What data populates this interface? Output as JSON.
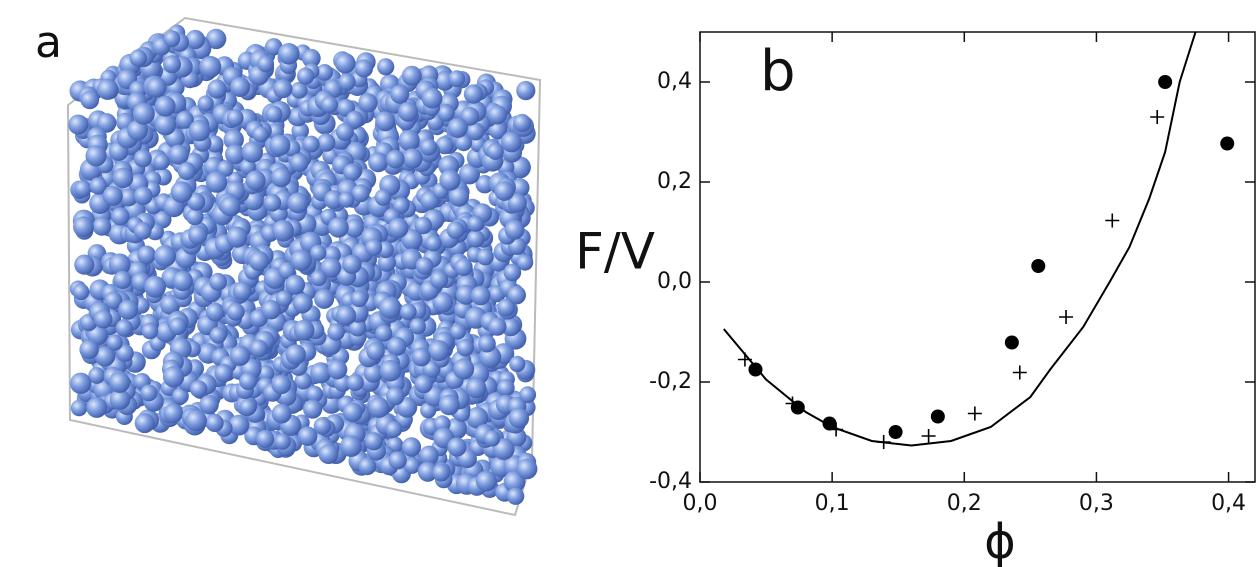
{
  "panel_a": {
    "label": "a"
  },
  "chart_data": {
    "type": "scatter",
    "panel_label": "b",
    "y_label": "F/V",
    "x_label": "ϕ",
    "xlim": [
      0,
      0.42
    ],
    "ylim": [
      -0.4,
      0.5
    ],
    "xticks": [
      {
        "value": 0,
        "label": "0,0"
      },
      {
        "value": 0.1,
        "label": "0,1"
      },
      {
        "value": 0.2,
        "label": "0,2"
      },
      {
        "value": 0.3,
        "label": "0,3"
      },
      {
        "value": 0.4,
        "label": "0,4"
      }
    ],
    "yticks": [
      {
        "value": -0.4,
        "label": "-0,4"
      },
      {
        "value": -0.2,
        "label": "-0,2"
      },
      {
        "value": 0,
        "label": "0,0"
      },
      {
        "value": 0.2,
        "label": "0,2"
      },
      {
        "value": 0.4,
        "label": "0,4"
      }
    ],
    "series": [
      {
        "marker": "circle",
        "color": "#000000",
        "x": [
          0.042,
          0.074,
          0.098,
          0.148,
          0.18,
          0.236,
          0.256,
          0.352,
          0.399
        ],
        "values": [
          -0.175,
          -0.251,
          -0.283,
          -0.3,
          -0.269,
          -0.121,
          0.032,
          0.4,
          0.277
        ]
      },
      {
        "marker": "plus",
        "color": "#000000",
        "x": [
          0.034,
          0.07,
          0.103,
          0.139,
          0.173,
          0.208,
          0.242,
          0.277,
          0.312,
          0.346
        ],
        "values": [
          -0.155,
          -0.243,
          -0.295,
          -0.32,
          -0.308,
          -0.263,
          -0.181,
          -0.07,
          0.123,
          0.33
        ]
      },
      {
        "marker": "line",
        "color": "#000000",
        "x": [
          0.018,
          0.05,
          0.08,
          0.1,
          0.13,
          0.16,
          0.19,
          0.22,
          0.25,
          0.265,
          0.29,
          0.31,
          0.325,
          0.34,
          0.352,
          0.363,
          0.375
        ],
        "values": [
          -0.094,
          -0.195,
          -0.26,
          -0.29,
          -0.318,
          -0.327,
          -0.318,
          -0.29,
          -0.23,
          -0.175,
          -0.09,
          0,
          0.07,
          0.167,
          0.26,
          0.4,
          0.5
        ]
      }
    ]
  }
}
